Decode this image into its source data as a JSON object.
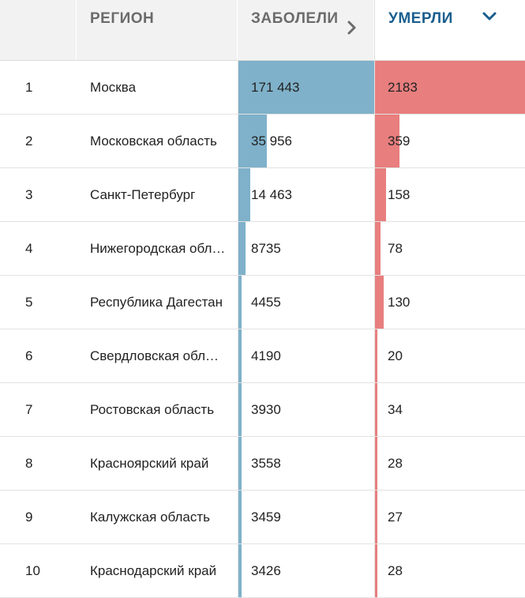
{
  "header": {
    "rank_label": "",
    "region_label": "РЕГИОН",
    "cases_label": "ЗАБОЛЕЛИ",
    "deaths_label": "УМЕРЛИ",
    "cases_icon": "chevron-right-icon",
    "deaths_icon": "chevron-down-icon"
  },
  "colors": {
    "cases_bar": "#7fb1ca",
    "deaths_bar": "#e87e7e",
    "active_header": "#1a5e8e",
    "inactive_header": "#6b6b6b"
  },
  "chart_data": {
    "type": "table",
    "columns": [
      "",
      "РЕГИОН",
      "ЗАБОЛЕЛИ",
      "УМЕРЛИ"
    ],
    "sorted_by": "УМЕРЛИ",
    "rows": [
      {
        "rank": "1",
        "region": "Москва",
        "cases": 171443,
        "cases_text": "171 443",
        "deaths": 2183,
        "deaths_text": "2183"
      },
      {
        "rank": "2",
        "region": "Московская область",
        "cases": 35956,
        "cases_text": "35 956",
        "deaths": 359,
        "deaths_text": "359"
      },
      {
        "rank": "3",
        "region": "Санкт-Петербург",
        "cases": 14463,
        "cases_text": "14 463",
        "deaths": 158,
        "deaths_text": "158"
      },
      {
        "rank": "4",
        "region": "Нижегородская область",
        "cases": 8735,
        "cases_text": "8735",
        "deaths": 78,
        "deaths_text": "78"
      },
      {
        "rank": "5",
        "region": "Республика Дагестан",
        "cases": 4455,
        "cases_text": "4455",
        "deaths": 130,
        "deaths_text": "130"
      },
      {
        "rank": "6",
        "region": "Свердловская область",
        "cases": 4190,
        "cases_text": "4190",
        "deaths": 20,
        "deaths_text": "20"
      },
      {
        "rank": "7",
        "region": "Ростовская область",
        "cases": 3930,
        "cases_text": "3930",
        "deaths": 34,
        "deaths_text": "34"
      },
      {
        "rank": "8",
        "region": "Красноярский край",
        "cases": 3558,
        "cases_text": "3558",
        "deaths": 28,
        "deaths_text": "28"
      },
      {
        "rank": "9",
        "region": "Калужская область",
        "cases": 3459,
        "cases_text": "3459",
        "deaths": 27,
        "deaths_text": "27"
      },
      {
        "rank": "10",
        "region": "Краснодарский край",
        "cases": 3426,
        "cases_text": "3426",
        "deaths": 28,
        "deaths_text": "28"
      }
    ]
  }
}
